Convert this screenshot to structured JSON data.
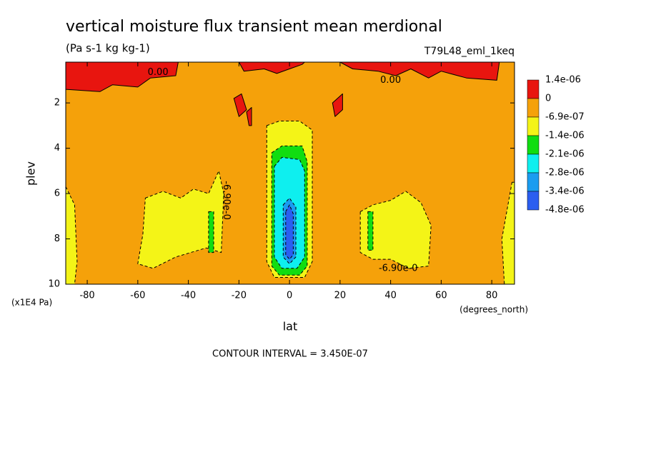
{
  "chart_data": {
    "type": "contour",
    "title": "vertical moisture flux transient mean merdional",
    "subtitle": "(Pa s-1 kg kg-1)",
    "dataset": "T79L48_eml_1keq",
    "x_label": "lat",
    "x_units": "(degrees_north)",
    "y_label": "plev",
    "y_units": "(x1E4 Pa)",
    "footer": "CONTOUR INTERVAL = 3.450E-07",
    "xlim": [
      -88.5,
      89
    ],
    "ylim": [
      10,
      0.2
    ],
    "y_inverted": true,
    "xticks": [
      -80,
      -60,
      -40,
      -20,
      0,
      20,
      40,
      60,
      80
    ],
    "yticks": [
      2,
      4,
      6,
      8,
      10
    ],
    "levels": [
      {
        "value": 1.4e-06,
        "label": "1.4e-06"
      },
      0,
      {
        "value": -6.9e-07,
        "label": "-6.9e-07"
      },
      {
        "value": -1.4e-06,
        "label": "-1.4e-06"
      },
      {
        "value": -2.1e-06,
        "label": "-2.1e-06"
      },
      {
        "value": -2.8e-06,
        "label": "-2.8e-06"
      },
      {
        "value": -3.4e-06,
        "label": "-3.4e-06"
      },
      {
        "value": -4.8e-06,
        "label": "-4.8e-06"
      }
    ],
    "colors": [
      "#e8150f",
      "#f5a10a",
      "#f4f417",
      "#11dd11",
      "#0eefef",
      "#1a9cf0",
      "#2b5ef0"
    ],
    "background_band": 1,
    "regions": [
      {
        "band": 0,
        "points": [
          [
            -88.5,
            0.2
          ],
          [
            -88.5,
            1.4
          ],
          [
            -75,
            1.5
          ],
          [
            -70,
            1.2
          ],
          [
            -60,
            1.3
          ],
          [
            -55,
            0.9
          ],
          [
            -45,
            0.8
          ],
          [
            -44,
            0.2
          ]
        ]
      },
      {
        "band": 0,
        "points": [
          [
            -20,
            0.2
          ],
          [
            -18,
            0.6
          ],
          [
            -10,
            0.5
          ],
          [
            -5,
            0.7
          ],
          [
            0,
            0.5
          ],
          [
            5,
            0.3
          ],
          [
            6,
            0.2
          ]
        ]
      },
      {
        "band": 0,
        "points": [
          [
            20,
            0.2
          ],
          [
            25,
            0.5
          ],
          [
            35,
            0.6
          ],
          [
            42,
            0.8
          ],
          [
            48,
            0.5
          ],
          [
            55,
            0.9
          ],
          [
            60,
            0.6
          ],
          [
            70,
            0.9
          ],
          [
            82,
            1.0
          ],
          [
            83,
            0.2
          ]
        ]
      },
      {
        "band": 0,
        "points": [
          [
            -22,
            1.8
          ],
          [
            -19,
            1.6
          ],
          [
            -17,
            2.3
          ],
          [
            -20,
            2.6
          ]
        ]
      },
      {
        "band": 0,
        "points": [
          [
            -17,
            2.4
          ],
          [
            -15,
            2.2
          ],
          [
            -15,
            3.0
          ],
          [
            -16,
            3.0
          ]
        ]
      },
      {
        "band": 0,
        "points": [
          [
            17,
            2.0
          ],
          [
            21,
            1.6
          ],
          [
            21,
            2.3
          ],
          [
            18,
            2.6
          ]
        ]
      },
      {
        "band": 2,
        "points": [
          [
            -57,
            6.2
          ],
          [
            -50,
            5.9
          ],
          [
            -43,
            6.2
          ],
          [
            -38,
            5.8
          ],
          [
            -32,
            6.0
          ],
          [
            -28,
            5.0
          ],
          [
            -26,
            6.0
          ],
          [
            -27,
            8.6
          ],
          [
            -33,
            8.4
          ],
          [
            -45,
            8.8
          ],
          [
            -54,
            9.3
          ],
          [
            -60,
            9.1
          ],
          [
            -58,
            7.8
          ]
        ]
      },
      {
        "band": 2,
        "points": [
          [
            28,
            6.8
          ],
          [
            33,
            6.5
          ],
          [
            40,
            6.3
          ],
          [
            46,
            5.9
          ],
          [
            52,
            6.4
          ],
          [
            56,
            7.4
          ],
          [
            55,
            9.2
          ],
          [
            47,
            9.3
          ],
          [
            40,
            8.9
          ],
          [
            33,
            8.9
          ],
          [
            28,
            8.6
          ]
        ]
      },
      {
        "band": 2,
        "points": [
          [
            -88.5,
            5.7
          ],
          [
            -85,
            6.5
          ],
          [
            -84,
            9
          ],
          [
            -85,
            10
          ],
          [
            -88.5,
            10
          ]
        ]
      },
      {
        "band": 2,
        "points": [
          [
            88,
            5.5
          ],
          [
            89,
            5.5
          ],
          [
            89,
            10
          ],
          [
            85,
            10
          ],
          [
            84,
            8
          ]
        ]
      },
      {
        "band": 2,
        "points": [
          [
            -9,
            3.0
          ],
          [
            -4,
            2.8
          ],
          [
            4,
            2.8
          ],
          [
            9,
            3.2
          ],
          [
            9,
            9.0
          ],
          [
            6,
            9.7
          ],
          [
            -6,
            9.7
          ],
          [
            -9,
            9.0
          ]
        ]
      },
      {
        "band": 3,
        "points": [
          [
            -32,
            6.8
          ],
          [
            -30,
            6.8
          ],
          [
            -30,
            8.6
          ],
          [
            -32,
            8.6
          ]
        ]
      },
      {
        "band": 3,
        "points": [
          [
            31,
            6.8
          ],
          [
            33,
            6.8
          ],
          [
            33,
            8.5
          ],
          [
            31,
            8.5
          ]
        ]
      },
      {
        "band": 3,
        "points": [
          [
            -7,
            4.2
          ],
          [
            -3,
            3.9
          ],
          [
            5,
            3.9
          ],
          [
            7,
            4.6
          ],
          [
            7,
            9.2
          ],
          [
            4,
            9.6
          ],
          [
            -4,
            9.6
          ],
          [
            -7,
            9.2
          ]
        ]
      },
      {
        "band": 4,
        "points": [
          [
            -6,
            4.8
          ],
          [
            -3,
            4.4
          ],
          [
            4,
            4.5
          ],
          [
            6,
            5.0
          ],
          [
            6,
            8.8
          ],
          [
            3,
            9.3
          ],
          [
            -3,
            9.3
          ],
          [
            -6,
            8.8
          ]
        ]
      },
      {
        "band": 5,
        "points": [
          [
            -2.5,
            6.5
          ],
          [
            0,
            6.2
          ],
          [
            2.5,
            6.6
          ],
          [
            2.5,
            8.8
          ],
          [
            0,
            9.1
          ],
          [
            -2.5,
            8.8
          ]
        ]
      },
      {
        "band": 6,
        "points": [
          [
            -1.5,
            6.8
          ],
          [
            0,
            6.5
          ],
          [
            1.5,
            6.9
          ],
          [
            1.5,
            8.7
          ],
          [
            0,
            8.9
          ],
          [
            -1.5,
            8.7
          ]
        ]
      }
    ],
    "annotations": [
      {
        "text": "0.00",
        "lat": -52,
        "plev": 0.65
      },
      {
        "text": "0.00",
        "lat": 40,
        "plev": 1.0
      },
      {
        "text": "-6.90e-0",
        "lat": 43,
        "plev": 9.3
      },
      {
        "text": "-6.90e-0",
        "lat": -25,
        "plev": 6.3,
        "rotate": 90
      }
    ]
  }
}
